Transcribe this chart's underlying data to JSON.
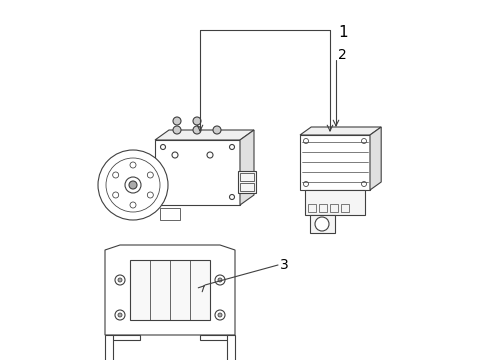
{
  "title": "",
  "background_color": "#ffffff",
  "line_color": "#404040",
  "line_width": 0.8,
  "label1": "1",
  "label2": "2",
  "label3": "3",
  "figsize": [
    4.89,
    3.6
  ],
  "dpi": 100
}
